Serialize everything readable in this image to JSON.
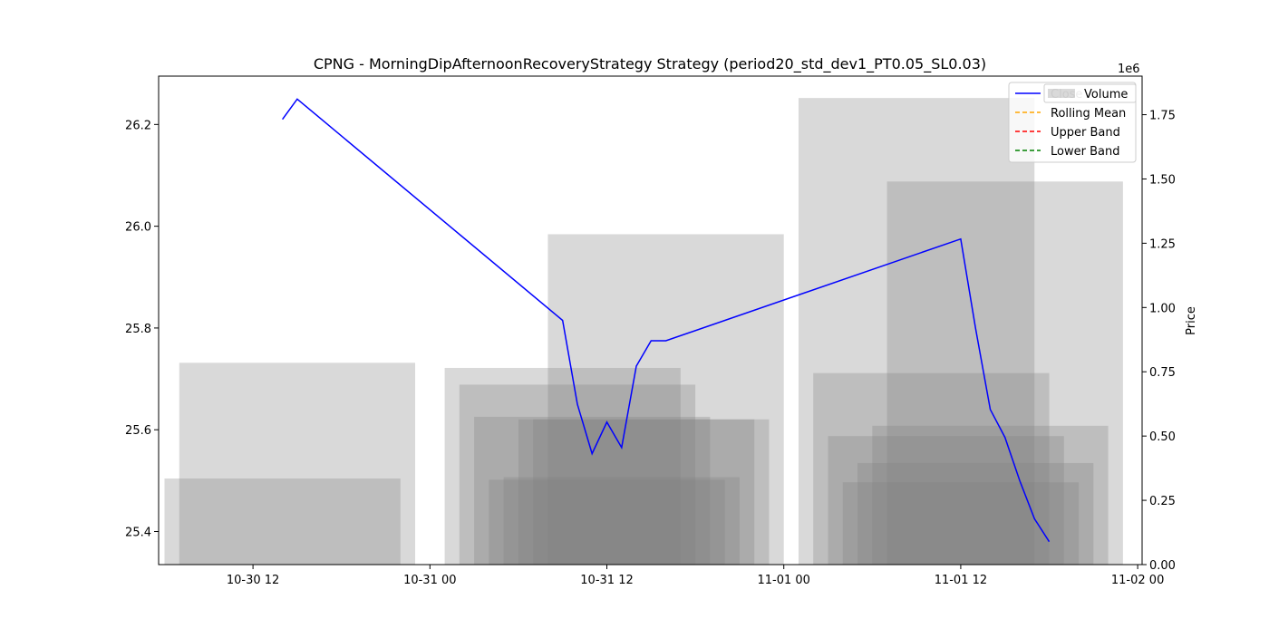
{
  "chart_data": {
    "type": "line",
    "title": "CPNG - MorningDipAfternoonRecoveryStrategy Strategy (period20_std_dev1_PT0.05_SL0.03)",
    "xlabel": "",
    "ylabel": "",
    "y2label": "Price",
    "y2_offset_text": "1e6",
    "x_ticks": [
      "10-30 12",
      "10-31 00",
      "10-31 12",
      "11-01 00",
      "11-01 12",
      "11-02 00"
    ],
    "x_tick_values": [
      12,
      24,
      36,
      48,
      60,
      72
    ],
    "xlim": [
      5.6,
      72.3
    ],
    "ylim": [
      25.335,
      26.295
    ],
    "y_ticks": [
      25.4,
      25.6,
      25.8,
      26.0,
      26.2
    ],
    "y_tick_labels": [
      "25.4",
      "25.6",
      "25.8",
      "26.0",
      "26.2"
    ],
    "y2lim": [
      0,
      1.9
    ],
    "y2_ticks": [
      0,
      0.25,
      0.5,
      0.75,
      1.0,
      1.25,
      1.5,
      1.75
    ],
    "y2_tick_labels": [
      "0.00",
      "0.25",
      "0.50",
      "0.75",
      "1.00",
      "1.25",
      "1.50",
      "1.75"
    ],
    "legend": {
      "placement": "top-right",
      "entries": [
        {
          "name": "Close",
          "color": "#0000ff",
          "style": "solid"
        },
        {
          "name": "Rolling Mean",
          "color": "#ffa500",
          "style": "dashed"
        },
        {
          "name": "Upper Band",
          "color": "#ff0000",
          "style": "dashed"
        },
        {
          "name": "Lower Band",
          "color": "#008000",
          "style": "dashed"
        }
      ],
      "volume_entry": "Volume"
    },
    "series": [
      {
        "name": "Close",
        "color": "#0000ff",
        "x": [
          14,
          15,
          33,
          34,
          35,
          36,
          37,
          38,
          39,
          40,
          60,
          61,
          62,
          63,
          64,
          65,
          66
        ],
        "values": [
          26.21,
          26.25,
          25.815,
          25.65,
          25.553,
          25.615,
          25.565,
          25.725,
          25.775,
          25.775,
          25.975,
          25.8,
          25.64,
          25.585,
          25.5,
          25.425,
          25.38
        ]
      },
      {
        "name": "Volume",
        "color": "#808080",
        "type": "bar",
        "x": [
          15,
          14,
          33,
          34,
          35,
          36,
          37,
          38,
          39,
          40,
          57,
          58,
          59,
          60,
          61,
          62,
          63,
          64,
          65
        ],
        "values": [
          0.785,
          0.335,
          0.765,
          0.7,
          0.575,
          0.33,
          0.34,
          0.565,
          0.565,
          1.285,
          1.815,
          0.745,
          0.5,
          0.32,
          0.395,
          0.54,
          1.49,
          0.0,
          0.0
        ]
      }
    ]
  }
}
